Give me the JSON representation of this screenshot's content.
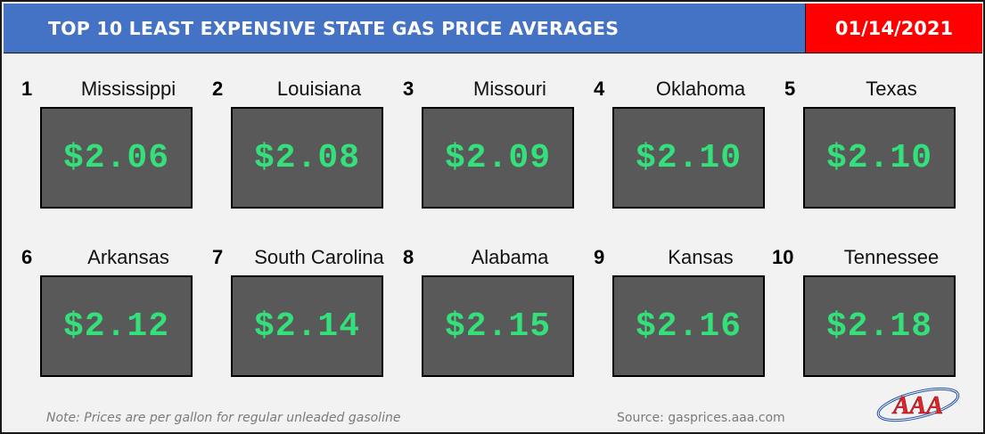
{
  "header": {
    "title": "TOP 10 LEAST EXPENSIVE STATE GAS PRICE AVERAGES",
    "date": "01/14/2021"
  },
  "states": [
    {
      "rank": "1",
      "name": "Mississippi",
      "price": "$2.06"
    },
    {
      "rank": "2",
      "name": "Louisiana",
      "price": "$2.08"
    },
    {
      "rank": "3",
      "name": "Missouri",
      "price": "$2.09"
    },
    {
      "rank": "4",
      "name": "Oklahoma",
      "price": "$2.10"
    },
    {
      "rank": "5",
      "name": "Texas",
      "price": "$2.10"
    },
    {
      "rank": "6",
      "name": "Arkansas",
      "price": "$2.12"
    },
    {
      "rank": "7",
      "name": "South Carolina",
      "price": "$2.14"
    },
    {
      "rank": "8",
      "name": "Alabama",
      "price": "$2.15"
    },
    {
      "rank": "9",
      "name": "Kansas",
      "price": "$2.16"
    },
    {
      "rank": "10",
      "name": "Tennessee",
      "price": "$2.18"
    }
  ],
  "footer": {
    "note": "Note: Prices are per gallon for regular unleaded gasoline",
    "source": "Source: gasprices.aaa.com",
    "logo_text": "AAA"
  },
  "colors": {
    "title_bar": "#4472c4",
    "date_box": "#ff0000",
    "price_box": "#595959",
    "price_text": "#33e07a"
  }
}
